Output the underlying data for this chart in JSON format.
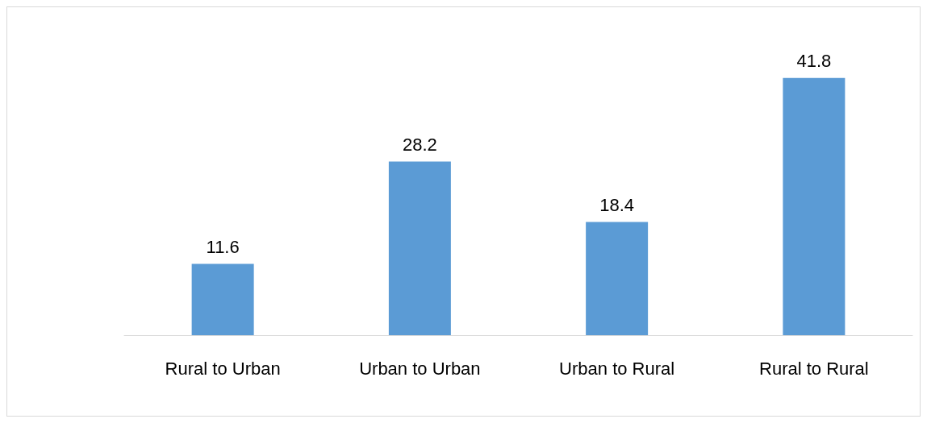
{
  "chart_data": {
    "type": "bar",
    "categories": [
      "Rural to Urban",
      "Urban to Urban",
      "Urban to Rural",
      "Rural to Rural"
    ],
    "values": [
      11.6,
      28.2,
      18.4,
      41.8
    ],
    "color": "#5b9bd5",
    "data_labels": true
  }
}
